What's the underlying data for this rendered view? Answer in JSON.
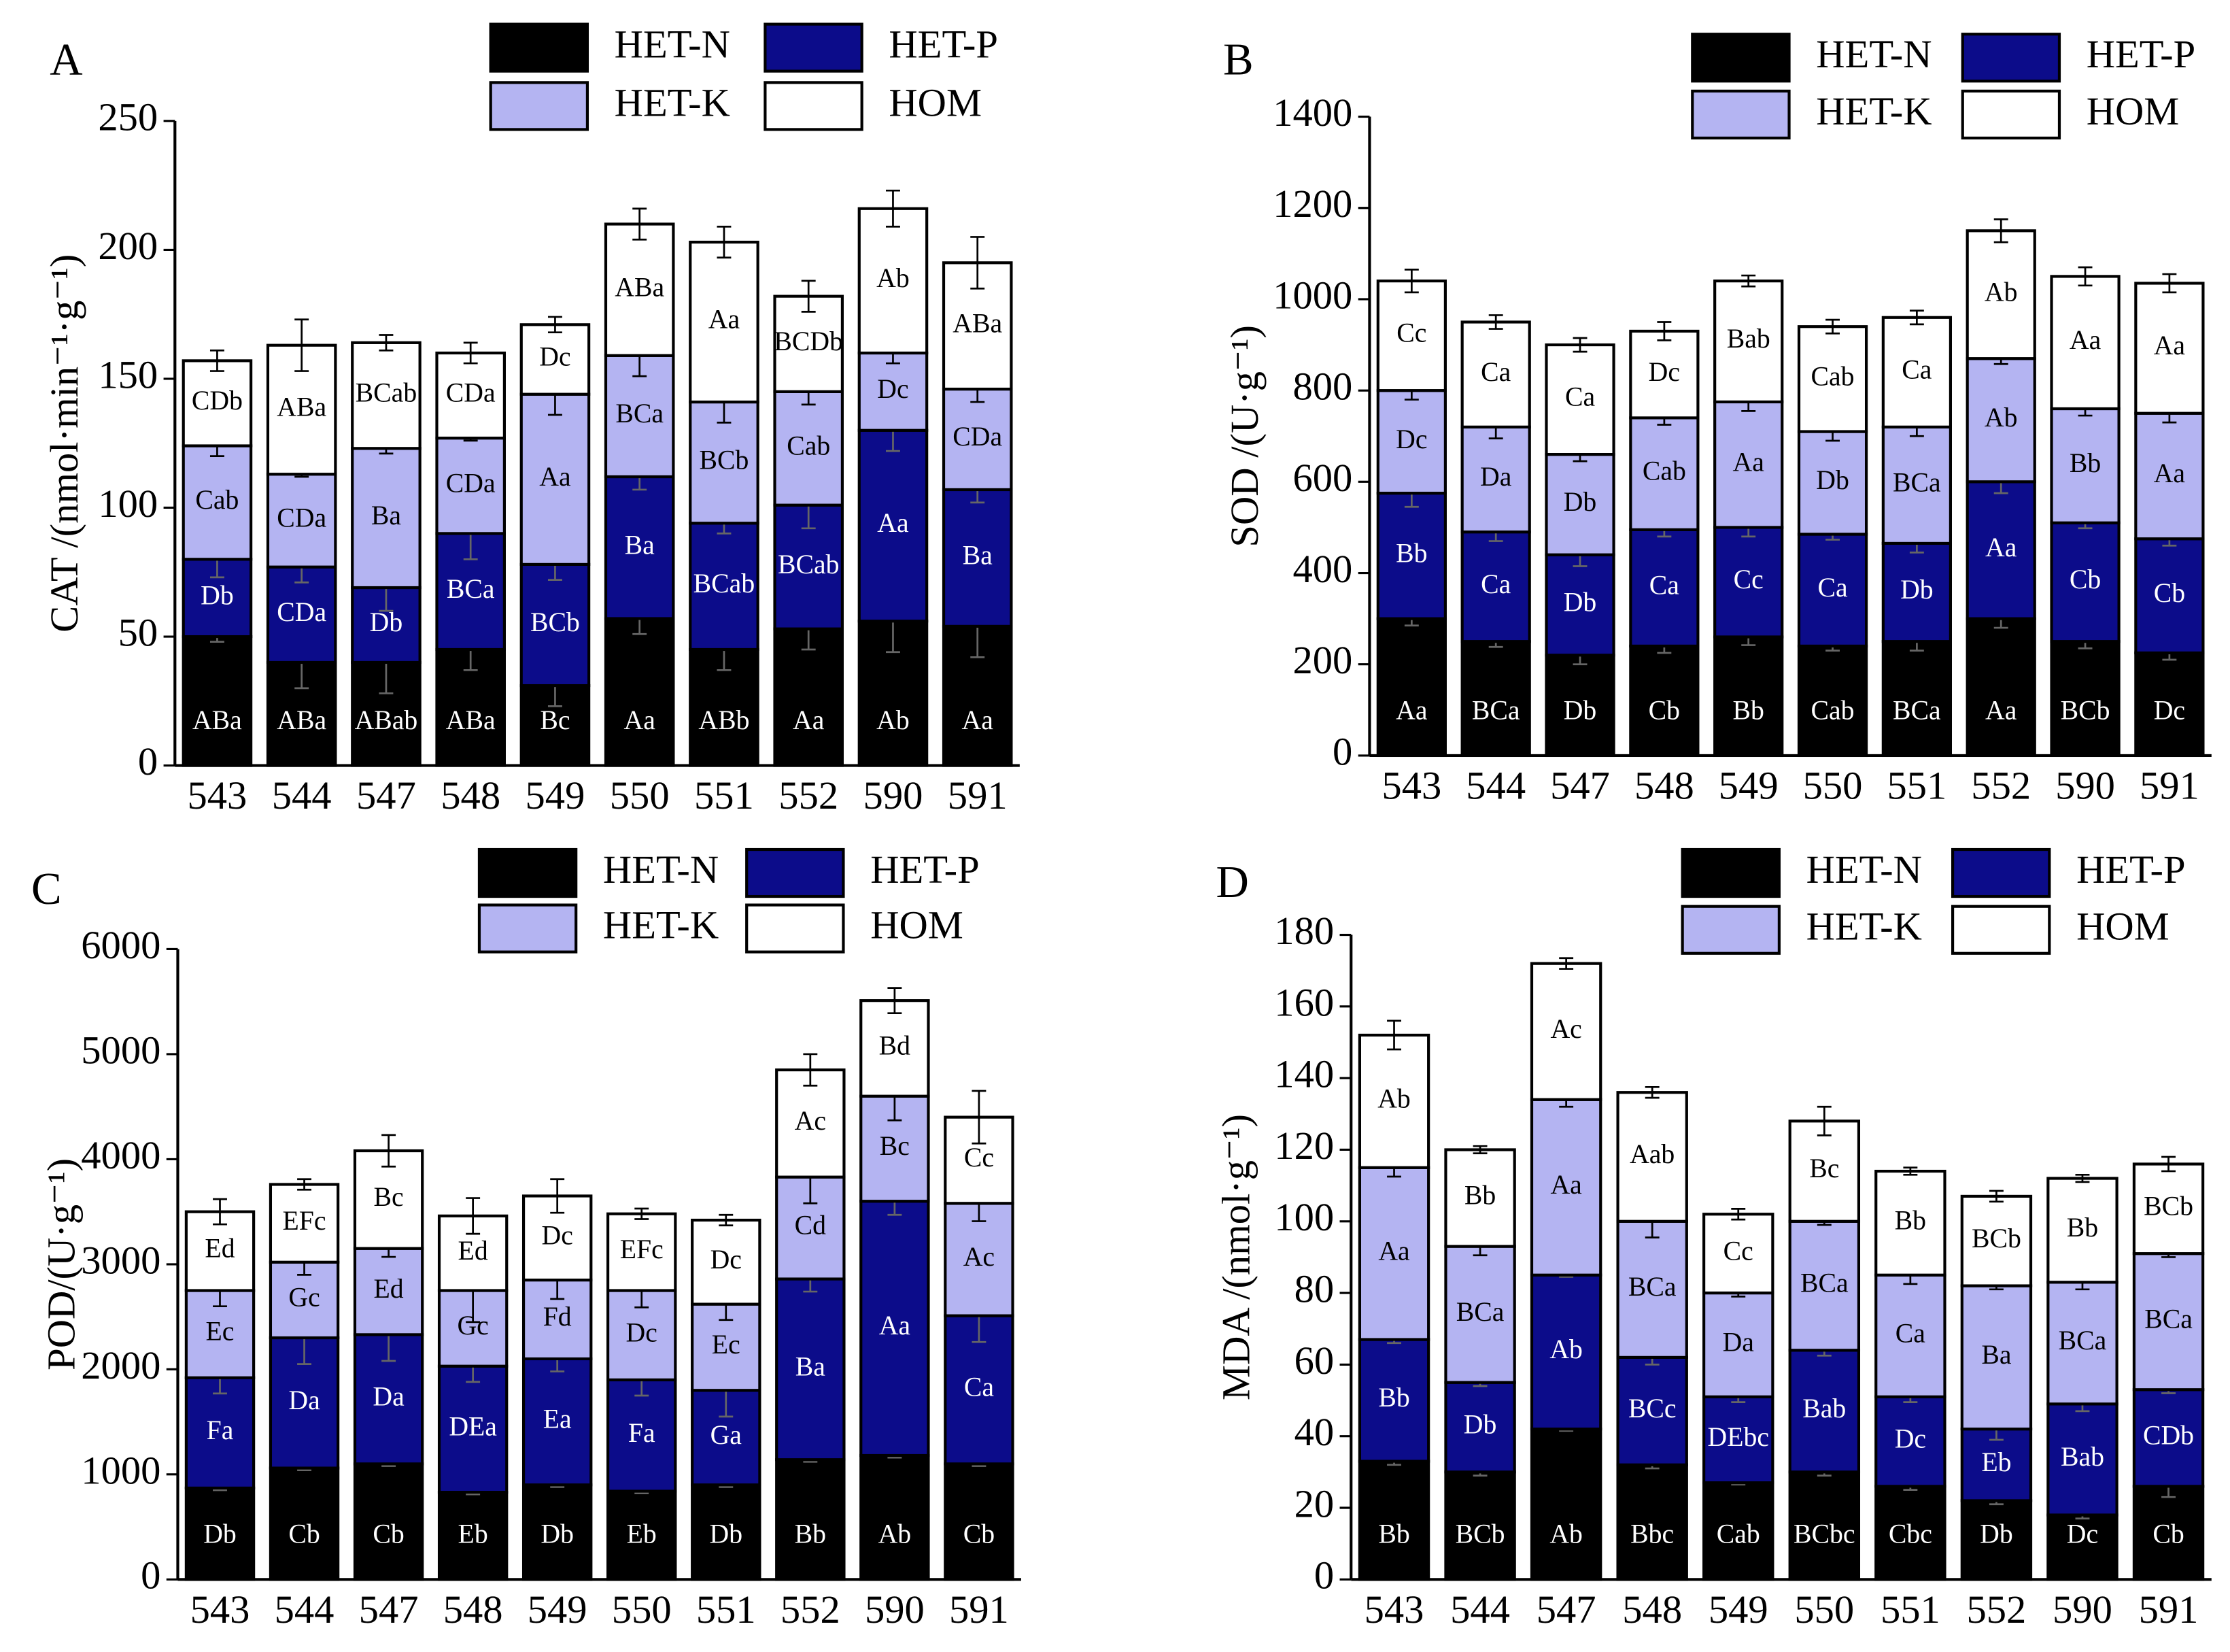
{
  "chart_data": [
    {
      "type": "bar",
      "stacked": true,
      "panel": "A",
      "ylabel": "CAT /(nmol·min⁻¹·g⁻¹)",
      "categories": [
        "543",
        "544",
        "547",
        "548",
        "549",
        "550",
        "551",
        "552",
        "590",
        "591"
      ],
      "ylim": [
        0,
        250
      ],
      "yticks": [
        0,
        50,
        100,
        150,
        200,
        250
      ],
      "series": [
        {
          "name": "HET-N",
          "color": "#000000",
          "values": [
            50,
            40,
            40,
            45,
            31,
            57,
            45,
            53,
            56,
            54
          ],
          "errors": [
            2,
            10,
            12,
            8,
            8,
            6,
            8,
            8,
            12,
            12
          ],
          "annotations": [
            "ABa",
            "ABa",
            "ABab",
            "ABa",
            "Bc",
            "Aa",
            "ABb",
            "Aa",
            "Ab",
            "Aa"
          ]
        },
        {
          "name": "HET-P",
          "color": "#0c0c8a",
          "values": [
            30,
            37,
            29,
            45,
            47,
            55,
            49,
            48,
            74,
            53
          ],
          "errors": [
            7,
            6,
            9,
            10,
            6,
            5,
            4,
            9,
            8,
            5
          ],
          "annotations": [
            "Db",
            "CDa",
            "Db",
            "BCa",
            "BCb",
            "Ba",
            "BCab",
            "BCab",
            "Aa",
            "Ba"
          ]
        },
        {
          "name": "HET-K",
          "color": "#b4b4f2",
          "values": [
            44,
            36,
            54,
            37,
            66,
            47,
            47,
            44,
            30,
            39
          ],
          "errors": [
            4,
            1,
            2,
            1,
            8,
            8,
            8,
            5,
            4,
            5
          ],
          "annotations": [
            "Cab",
            "CDa",
            "Ba",
            "CDa",
            "Aa",
            "BCa",
            "BCb",
            "Cab",
            "Dc",
            "CDa"
          ]
        },
        {
          "name": "HOM",
          "color": "#ffffff",
          "values": [
            33,
            50,
            41,
            33,
            27,
            51,
            62,
            37,
            56,
            49
          ],
          "errors": [
            4,
            10,
            3,
            4,
            3,
            6,
            6,
            6,
            7,
            10
          ],
          "annotations": [
            "CDb",
            "ABa",
            "BCab",
            "CDa",
            "Dc",
            "ABa",
            "Aa",
            "BCDb",
            "Ab",
            "ABa"
          ]
        }
      ]
    },
    {
      "type": "bar",
      "stacked": true,
      "panel": "B",
      "ylabel": "SOD /(U·g⁻¹)",
      "categories": [
        "543",
        "544",
        "547",
        "548",
        "549",
        "550",
        "551",
        "552",
        "590",
        "591"
      ],
      "ylim": [
        0,
        1400
      ],
      "yticks": [
        0,
        200,
        400,
        600,
        800,
        1000,
        1200,
        1400
      ],
      "series": [
        {
          "name": "HET-N",
          "color": "#000000",
          "values": [
            300,
            250,
            220,
            240,
            260,
            240,
            250,
            300,
            250,
            225
          ],
          "errors": [
            15,
            12,
            20,
            15,
            18,
            10,
            20,
            20,
            15,
            15
          ],
          "annotations": [
            "Aa",
            "BCa",
            "Db",
            "Cb",
            "Bb",
            "Cab",
            "BCa",
            "Aa",
            "BCb",
            "Dc"
          ]
        },
        {
          "name": "HET-P",
          "color": "#0c0c8a",
          "values": [
            275,
            240,
            220,
            255,
            240,
            245,
            215,
            300,
            260,
            250
          ],
          "errors": [
            30,
            20,
            25,
            15,
            20,
            12,
            20,
            25,
            12,
            15
          ],
          "annotations": [
            "Bb",
            "Ca",
            "Db",
            "Ca",
            "Cc",
            "Ca",
            "Db",
            "Aa",
            "Cb",
            "Cb"
          ]
        },
        {
          "name": "HET-K",
          "color": "#b4b4f2",
          "values": [
            225,
            230,
            220,
            245,
            275,
            225,
            255,
            270,
            250,
            275
          ],
          "errors": [
            20,
            25,
            15,
            15,
            20,
            20,
            20,
            12,
            15,
            20
          ],
          "annotations": [
            "Dc",
            "Da",
            "Db",
            "Cab",
            "Aa",
            "Db",
            "BCa",
            "Ab",
            "Bb",
            "Aa"
          ]
        },
        {
          "name": "HOM",
          "color": "#ffffff",
          "values": [
            240,
            230,
            240,
            190,
            265,
            230,
            240,
            280,
            290,
            285
          ],
          "errors": [
            25,
            15,
            15,
            20,
            12,
            15,
            15,
            25,
            20,
            20
          ],
          "annotations": [
            "Cc",
            "Ca",
            "Ca",
            "Dc",
            "Bab",
            "Cab",
            "Ca",
            "Ab",
            "Aa",
            "Aa"
          ]
        }
      ]
    },
    {
      "type": "bar",
      "stacked": true,
      "panel": "C",
      "ylabel": "POD/(U·g⁻¹)",
      "categories": [
        "543",
        "544",
        "547",
        "548",
        "549",
        "550",
        "551",
        "552",
        "590",
        "591"
      ],
      "ylim": [
        0,
        6000
      ],
      "yticks": [
        0,
        1000,
        2000,
        3000,
        4000,
        5000,
        6000
      ],
      "series": [
        {
          "name": "HET-N",
          "color": "#000000",
          "values": [
            870,
            1060,
            1100,
            830,
            900,
            840,
            900,
            1140,
            1180,
            1100
          ],
          "errors": [
            20,
            20,
            20,
            20,
            20,
            20,
            20,
            20,
            20,
            20
          ],
          "annotations": [
            "Db",
            "Cb",
            "Cb",
            "Eb",
            "Db",
            "Eb",
            "Db",
            "Bb",
            "Ab",
            "Cb"
          ]
        },
        {
          "name": "HET-P",
          "color": "#0c0c8a",
          "values": [
            1050,
            1240,
            1230,
            1200,
            1200,
            1060,
            900,
            1720,
            2420,
            1410
          ],
          "errors": [
            150,
            250,
            250,
            150,
            120,
            150,
            250,
            120,
            130,
            250
          ],
          "annotations": [
            "Fa",
            "Da",
            "Da",
            "DEa",
            "Ea",
            "Fa",
            "Ga",
            "Ba",
            "Aa",
            "Ca"
          ]
        },
        {
          "name": "HET-K",
          "color": "#b4b4f2",
          "values": [
            830,
            720,
            820,
            720,
            750,
            850,
            820,
            970,
            1000,
            1070
          ],
          "errors": [
            150,
            120,
            80,
            300,
            180,
            160,
            150,
            250,
            230,
            170
          ],
          "annotations": [
            "Ec",
            "Gc",
            "Ed",
            "Gc",
            "Fd",
            "Dc",
            "Ec",
            "Cd",
            "Bc",
            "Ac"
          ]
        },
        {
          "name": "HOM",
          "color": "#ffffff",
          "values": [
            750,
            740,
            930,
            710,
            800,
            730,
            800,
            1020,
            910,
            820
          ],
          "errors": [
            120,
            50,
            150,
            170,
            160,
            50,
            50,
            150,
            120,
            250
          ],
          "annotations": [
            "Ed",
            "EFc",
            "Bc",
            "Ed",
            "Dc",
            "EFc",
            "Dc",
            "Ac",
            "Bd",
            "Cc"
          ]
        }
      ]
    },
    {
      "type": "bar",
      "stacked": true,
      "panel": "D",
      "ylabel": "MDA /(nmol·g⁻¹)",
      "categories": [
        "543",
        "544",
        "547",
        "548",
        "549",
        "550",
        "551",
        "552",
        "590",
        "591"
      ],
      "ylim": [
        0,
        180
      ],
      "yticks": [
        0,
        20,
        40,
        60,
        80,
        100,
        120,
        140,
        160,
        180
      ],
      "series": [
        {
          "name": "HET-N",
          "color": "#000000",
          "values": [
            33,
            30,
            42,
            32,
            27,
            30,
            26,
            22,
            18,
            26
          ],
          "errors": [
            1,
            1,
            0.5,
            1,
            0.5,
            1,
            1,
            1,
            1,
            3
          ],
          "annotations": [
            "Bb",
            "BCb",
            "Ab",
            "Bbc",
            "Cab",
            "BCbc",
            "Cbc",
            "Db",
            "Dc",
            "Cb"
          ]
        },
        {
          "name": "HET-P",
          "color": "#0c0c8a",
          "values": [
            34,
            25,
            43,
            30,
            24,
            34,
            25,
            20,
            31,
            27
          ],
          "errors": [
            1,
            1,
            0.5,
            2,
            1.5,
            1.5,
            1.5,
            3,
            2,
            1
          ],
          "annotations": [
            "Bb",
            "Db",
            "Ab",
            "BCc",
            "DEbc",
            "Bab",
            "Dc",
            "Eb",
            "Bab",
            "CDb"
          ]
        },
        {
          "name": "HET-K",
          "color": "#b4b4f2",
          "values": [
            48,
            38,
            49,
            38,
            29,
            36,
            34,
            40,
            34,
            38
          ],
          "errors": [
            2.5,
            2.5,
            2,
            4.5,
            1,
            1,
            2.5,
            1,
            2,
            1
          ],
          "annotations": [
            "Aa",
            "BCa",
            "Aa",
            "BCa",
            "Da",
            "BCa",
            "Ca",
            "Ba",
            "BCa",
            "BCa"
          ]
        },
        {
          "name": "HOM",
          "color": "#ffffff",
          "values": [
            37,
            27,
            38,
            36,
            22,
            28,
            29,
            25,
            29,
            25
          ],
          "errors": [
            4,
            1,
            1.5,
            1.5,
            1.5,
            4,
            1,
            1.5,
            1,
            2
          ],
          "annotations": [
            "Ab",
            "Bb",
            "Ac",
            "Aab",
            "Cc",
            "Bc",
            "Bb",
            "BCb",
            "Bb",
            "BCb"
          ]
        }
      ]
    }
  ]
}
